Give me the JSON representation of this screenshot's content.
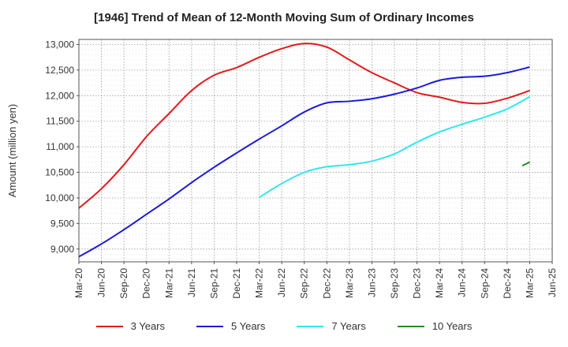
{
  "chart_data": {
    "type": "line",
    "title": "[1946]  Trend of Mean of 12-Month Moving Sum of Ordinary Incomes",
    "xlabel": "",
    "ylabel": "Amount (million yen)",
    "ylim": [
      8750,
      13100
    ],
    "yticks": [
      9000,
      9500,
      10000,
      10500,
      11000,
      11500,
      12000,
      12500,
      13000
    ],
    "ytick_labels": [
      "9,000",
      "9,500",
      "10,000",
      "10,500",
      "11,000",
      "11,500",
      "12,000",
      "12,500",
      "13,000"
    ],
    "categories": [
      "Mar-20",
      "Jun-20",
      "Sep-20",
      "Dec-20",
      "Mar-21",
      "Jun-21",
      "Sep-21",
      "Dec-21",
      "Mar-22",
      "Jun-22",
      "Sep-22",
      "Dec-22",
      "Mar-23",
      "Jun-23",
      "Sep-23",
      "Dec-23",
      "Mar-24",
      "Jun-24",
      "Sep-24",
      "Dec-24",
      "Mar-25",
      "Jun-25"
    ],
    "grid": true,
    "legend_position": "bottom",
    "series": [
      {
        "name": "3 Years",
        "color": "#e31a1c",
        "values": [
          9800,
          10180,
          10650,
          11200,
          11650,
          12100,
          12400,
          12550,
          12750,
          12920,
          13020,
          12950,
          12700,
          12450,
          12250,
          12060,
          11970,
          11870,
          11850,
          11950,
          12100,
          null
        ]
      },
      {
        "name": "5 Years",
        "color": "#1a1adb",
        "values": [
          8850,
          9100,
          9380,
          9680,
          9980,
          10300,
          10600,
          10880,
          11150,
          11410,
          11680,
          11860,
          11890,
          11940,
          12030,
          12150,
          12300,
          12360,
          12380,
          12450,
          12560,
          null
        ]
      },
      {
        "name": "7 Years",
        "color": "#33e6f0",
        "values": [
          null,
          null,
          null,
          null,
          null,
          null,
          null,
          null,
          10010,
          10280,
          10500,
          10610,
          10650,
          10720,
          10860,
          11090,
          11290,
          11440,
          11580,
          11740,
          11980,
          null
        ]
      },
      {
        "name": "10 Years",
        "color": "#228b22",
        "values": [
          null,
          null,
          null,
          null,
          null,
          null,
          null,
          null,
          null,
          null,
          null,
          null,
          null,
          null,
          null,
          null,
          null,
          null,
          null,
          null,
          10700,
          null
        ],
        "segment_start": 10630
      }
    ]
  }
}
